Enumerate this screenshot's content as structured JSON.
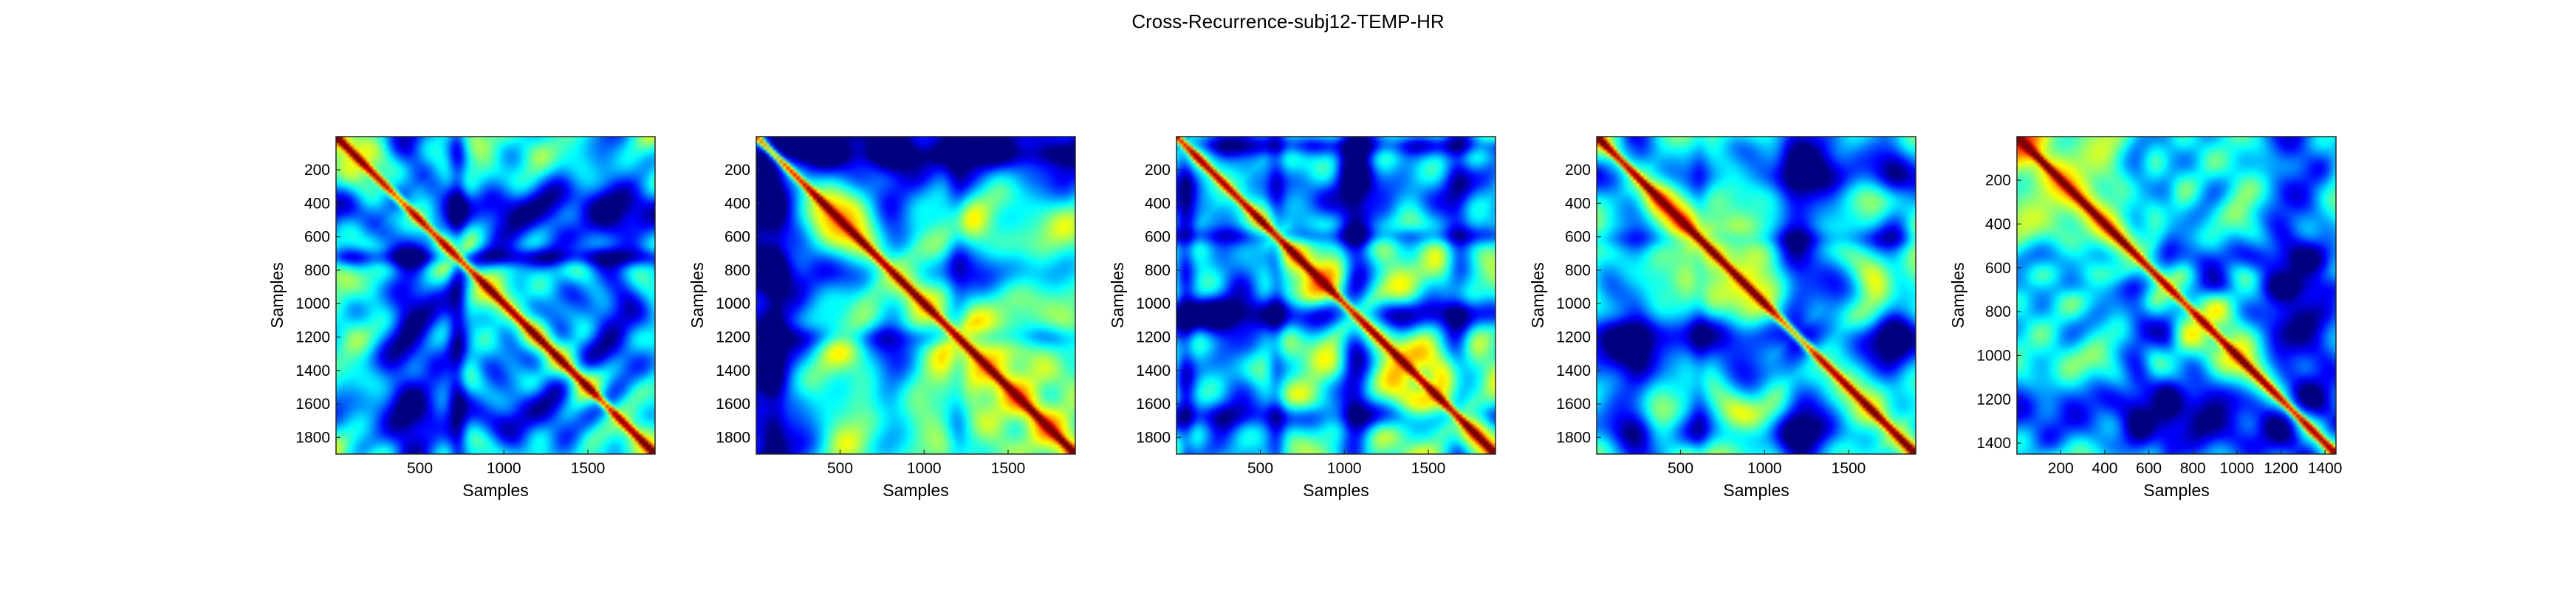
{
  "figure": {
    "title": "Cross-Recurrence-subj12-TEMP-HR"
  },
  "chart_data": [
    {
      "type": "heatmap",
      "xlabel": "Samples",
      "ylabel": "Samples",
      "xlim": [
        1,
        1900
      ],
      "ylim": [
        1,
        1900
      ],
      "xticks": [
        500,
        1000,
        1500
      ],
      "yticks": [
        200,
        400,
        600,
        800,
        1000,
        1200,
        1400,
        1600,
        1800
      ],
      "colormap": "jet",
      "pattern_seed": 1
    },
    {
      "type": "heatmap",
      "xlabel": "Samples",
      "ylabel": "Samples",
      "xlim": [
        1,
        1900
      ],
      "ylim": [
        1,
        1900
      ],
      "xticks": [
        500,
        1000,
        1500
      ],
      "yticks": [
        200,
        400,
        600,
        800,
        1000,
        1200,
        1400,
        1600,
        1800
      ],
      "colormap": "jet",
      "pattern_seed": 2
    },
    {
      "type": "heatmap",
      "xlabel": "Samples",
      "ylabel": "Samples",
      "xlim": [
        1,
        1900
      ],
      "ylim": [
        1,
        1900
      ],
      "xticks": [
        500,
        1000,
        1500
      ],
      "yticks": [
        200,
        400,
        600,
        800,
        1000,
        1200,
        1400,
        1600,
        1800
      ],
      "colormap": "jet",
      "pattern_seed": 3
    },
    {
      "type": "heatmap",
      "xlabel": "Samples",
      "ylabel": "Samples",
      "xlim": [
        1,
        1900
      ],
      "ylim": [
        1,
        1900
      ],
      "xticks": [
        500,
        1000,
        1500
      ],
      "yticks": [
        200,
        400,
        600,
        800,
        1000,
        1200,
        1400,
        1600,
        1800
      ],
      "colormap": "jet",
      "pattern_seed": 4
    },
    {
      "type": "heatmap",
      "xlabel": "Samples",
      "ylabel": "Samples",
      "xlim": [
        1,
        1450
      ],
      "ylim": [
        1,
        1450
      ],
      "xticks": [
        200,
        400,
        600,
        800,
        1000,
        1200,
        1400
      ],
      "yticks": [
        200,
        400,
        600,
        800,
        1000,
        1200,
        1400
      ],
      "colormap": "jet",
      "pattern_seed": 5
    }
  ]
}
